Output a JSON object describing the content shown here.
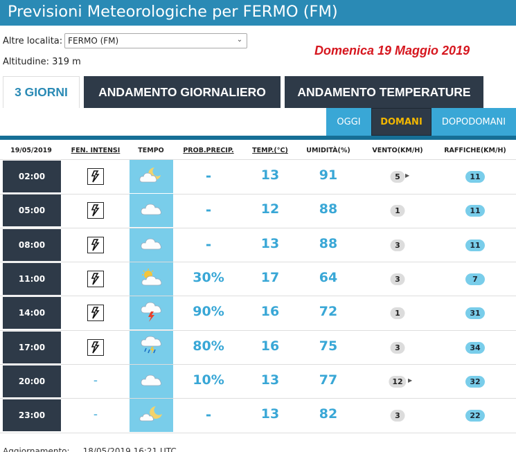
{
  "page": {
    "title": "Previsioni Meteorologiche per FERMO (FM)",
    "location_label": "Altre localita:",
    "location_value": "FERMO (FM)",
    "date_display": "Domenica 19 Maggio 2019",
    "altitude": "Altitudine: 319 m",
    "footer": "Aggiornamento: ... 18/05/2019 16:21 UTC"
  },
  "tabs": [
    {
      "label": "3 GIORNI",
      "active": true
    },
    {
      "label": "ANDAMENTO GIORNALIERO",
      "active": false
    },
    {
      "label": "ANDAMENTO TEMPERATURE",
      "active": false
    }
  ],
  "subtabs": [
    {
      "label": "OGGI",
      "selected": false
    },
    {
      "label": "DOMANI",
      "selected": true
    },
    {
      "label": "DOPODOMANI",
      "selected": false
    }
  ],
  "columns": [
    "19/05/2019",
    "FEN. INTENSI",
    "TEMPO",
    "PROB.PRECIP.",
    "TEMP.(°C)",
    "UMIDITÀ(%)",
    "VENTO(KM/H)",
    "RAFFICHE(KM/H)"
  ],
  "rows": [
    {
      "time": "02:00",
      "storm": true,
      "sky": "partly-cloudy-night-icon",
      "precip": "-",
      "temp": "13",
      "humidity": "91",
      "wind": "5",
      "wind_arrow": true,
      "gust": "11"
    },
    {
      "time": "05:00",
      "storm": true,
      "sky": "cloud-icon",
      "precip": "-",
      "temp": "12",
      "humidity": "88",
      "wind": "1",
      "wind_arrow": false,
      "gust": "11"
    },
    {
      "time": "08:00",
      "storm": true,
      "sky": "cloud-icon",
      "precip": "-",
      "temp": "13",
      "humidity": "88",
      "wind": "3",
      "wind_arrow": false,
      "gust": "11"
    },
    {
      "time": "11:00",
      "storm": true,
      "sky": "partly-sunny-icon",
      "precip": "30%",
      "temp": "17",
      "humidity": "64",
      "wind": "3",
      "wind_arrow": false,
      "gust": "7"
    },
    {
      "time": "14:00",
      "storm": true,
      "sky": "thunderstorm-icon",
      "precip": "90%",
      "temp": "16",
      "humidity": "72",
      "wind": "1",
      "wind_arrow": false,
      "gust": "31"
    },
    {
      "time": "17:00",
      "storm": true,
      "sky": "rain-storm-icon",
      "precip": "80%",
      "temp": "16",
      "humidity": "75",
      "wind": "3",
      "wind_arrow": false,
      "gust": "34"
    },
    {
      "time": "20:00",
      "storm": false,
      "sky": "cloud-icon",
      "precip": "10%",
      "temp": "13",
      "humidity": "77",
      "wind": "12",
      "wind_arrow": true,
      "gust": "32"
    },
    {
      "time": "23:00",
      "storm": false,
      "sky": "clear-night-icon",
      "precip": "-",
      "temp": "13",
      "humidity": "82",
      "wind": "3",
      "wind_arrow": false,
      "gust": "22"
    }
  ],
  "colors": {
    "accent": "#2a8ab5",
    "dark": "#2e3a48",
    "value": "#39a7d6",
    "date": "#d6171f",
    "selected": "#f3b700"
  }
}
